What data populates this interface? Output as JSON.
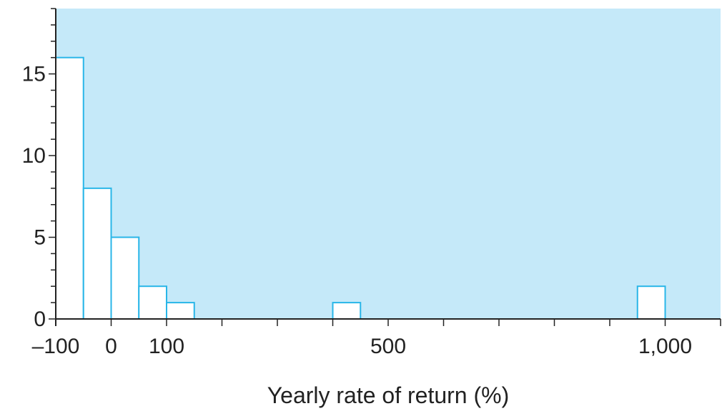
{
  "colors": {
    "background": "#c5e9f9",
    "bar_fill": "#ffffff",
    "bar_stroke": "#29b6e8",
    "axis": "#222222"
  },
  "chart_data": {
    "type": "bar",
    "title": "",
    "xlabel": "Yearly rate of return (%)",
    "ylabel": "",
    "xlim": [
      -100,
      1100
    ],
    "ylim": [
      0,
      19
    ],
    "grid": false,
    "bin_width": 50,
    "bars": [
      {
        "x0": -100,
        "x1": -50,
        "value": 16
      },
      {
        "x0": -50,
        "x1": 0,
        "value": 8
      },
      {
        "x0": 0,
        "x1": 50,
        "value": 5
      },
      {
        "x0": 50,
        "x1": 100,
        "value": 2
      },
      {
        "x0": 100,
        "x1": 150,
        "value": 1
      },
      {
        "x0": 400,
        "x1": 450,
        "value": 1
      },
      {
        "x0": 950,
        "x1": 1000,
        "value": 2
      }
    ],
    "x_major_ticks": [
      -100,
      0,
      100,
      200,
      300,
      400,
      500,
      600,
      700,
      800,
      900,
      1000,
      1100
    ],
    "x_tick_labels": [
      {
        "value": -100,
        "label": "–100"
      },
      {
        "value": 0,
        "label": "0"
      },
      {
        "value": 100,
        "label": "100"
      },
      {
        "value": 500,
        "label": "500"
      },
      {
        "value": 1000,
        "label": "1,000"
      }
    ],
    "y_major_ticks": [
      0,
      5,
      10,
      15
    ],
    "y_tick_labels": [
      "0",
      "5",
      "10",
      "15"
    ],
    "y_minor_step": 1
  }
}
